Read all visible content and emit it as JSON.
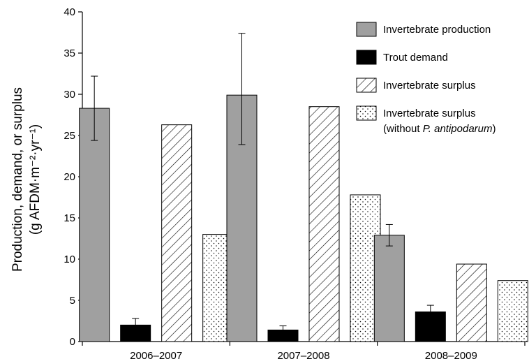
{
  "chart_data": {
    "type": "bar",
    "categories": [
      "2006–2007",
      "2007–2008",
      "2008–2009"
    ],
    "ylabel_line1": "Production, demand, or surplus",
    "ylabel_line2": "(g AFDM·m⁻²·yr⁻¹)",
    "ylim": [
      0,
      40
    ],
    "yticks": [
      "0",
      "5",
      "10",
      "15",
      "20",
      "25",
      "30",
      "35",
      "40"
    ],
    "grid": false,
    "legend_position": "top-right",
    "series": [
      {
        "name": "Invertebrate production",
        "values": [
          28.3,
          29.9,
          12.9
        ],
        "error_low": [
          24.4,
          23.9,
          11.6
        ],
        "error_high": [
          32.2,
          37.4,
          14.2
        ],
        "fill": "#a0a0a0",
        "pattern": "solid"
      },
      {
        "name": "Trout demand",
        "values": [
          2.0,
          1.4,
          3.6
        ],
        "error_low": [
          1.2,
          0.9,
          2.8
        ],
        "error_high": [
          2.8,
          1.9,
          4.4
        ],
        "fill": "#000000",
        "pattern": "solid"
      },
      {
        "name": "Invertebrate surplus",
        "values": [
          26.3,
          28.5,
          9.4
        ],
        "fill": "#ffffff",
        "pattern": "hatch"
      },
      {
        "name": "Invertebrate surplus",
        "name_line2_prefix": "(without ",
        "name_line2_italic": "P. antipodarum",
        "name_line2_suffix": ")",
        "values": [
          13.0,
          17.8,
          7.4
        ],
        "fill": "#ffffff",
        "pattern": "dots"
      }
    ]
  }
}
